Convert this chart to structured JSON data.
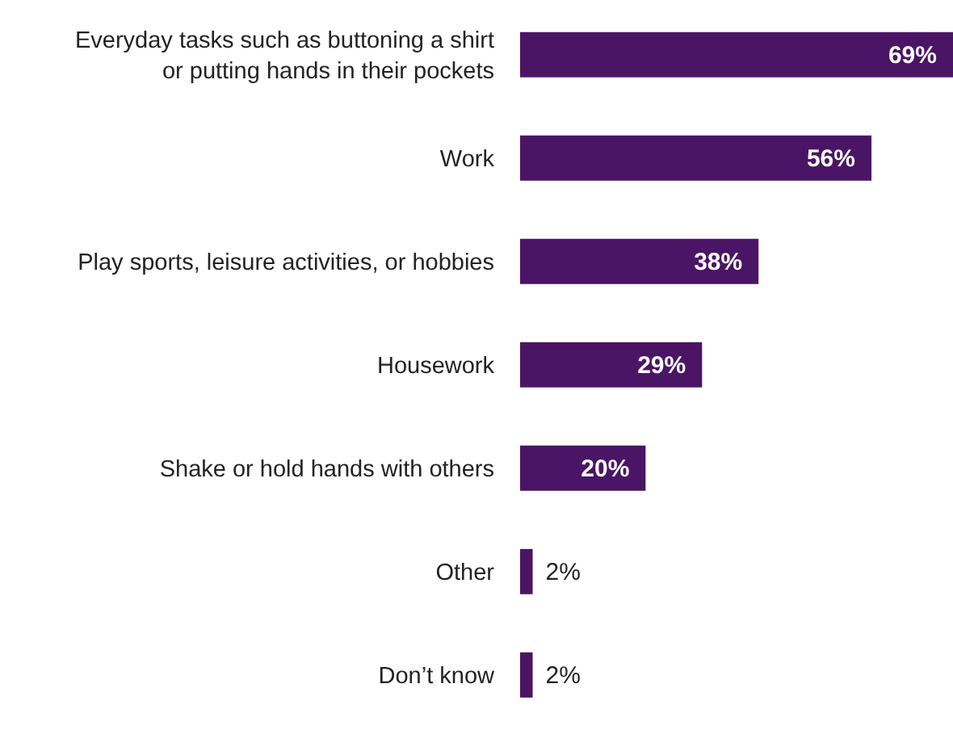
{
  "chart_data": {
    "type": "bar",
    "orientation": "horizontal",
    "categories": [
      "Everyday tasks such as buttoning a shirt or putting hands in their pockets",
      "Work",
      "Play sports, leisure activities, or hobbies",
      "Housework",
      "Shake or hold hands with others",
      "Other",
      "Don’t know"
    ],
    "values": [
      69,
      56,
      38,
      29,
      20,
      2,
      2
    ],
    "color": "#4a1564",
    "value_labels": [
      "69%",
      "56%",
      "38%",
      "29%",
      "20%",
      "2%",
      "2%"
    ],
    "tick_labels": "y"
  }
}
